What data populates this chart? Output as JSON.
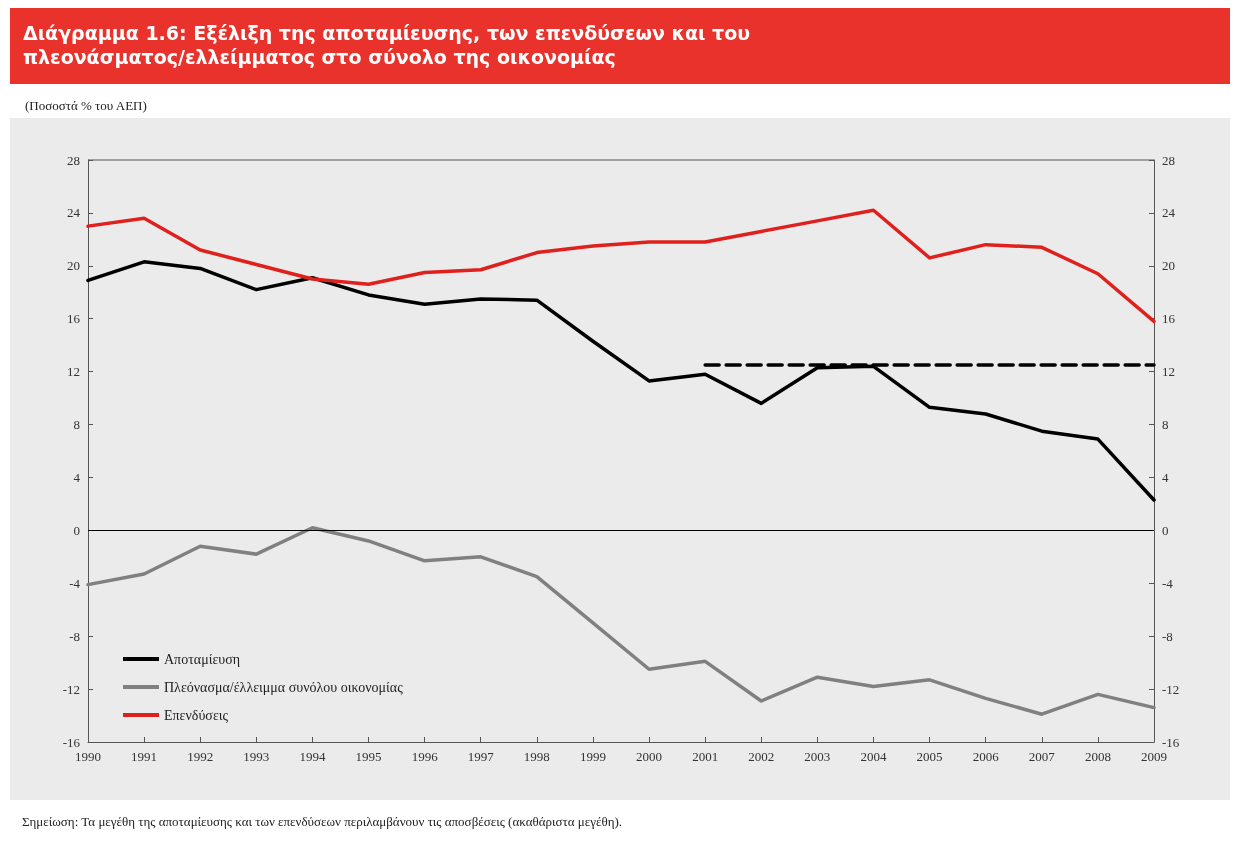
{
  "chart_data": {
    "type": "line",
    "title": "Διάγραμμα 1.6: Εξέλιξη της αποταμίευσης, των επενδύσεων και του πλεονάσματος/ελλείμματος στο σύνολο της οικονομίας",
    "subtitle": "(Ποσοστά % του ΑΕΠ)",
    "annotations": [
      "Σημείωση: Τα μεγέθη της αποταμίευσης και των επενδύσεων περιλαμβάνουν τις αποσβέσεις (ακαθάριστα μεγέθη)."
    ],
    "categories": [
      "1990",
      "1991",
      "1992",
      "1993",
      "1994",
      "1995",
      "1996",
      "1997",
      "1998",
      "1999",
      "2000",
      "2001",
      "2002",
      "2003",
      "2004",
      "2005",
      "2006",
      "2007",
      "2008",
      "2009"
    ],
    "series": [
      {
        "name": "Αποταμίευση",
        "color": "#000000",
        "values": [
          18.9,
          20.3,
          19.8,
          18.2,
          19.1,
          17.8,
          17.1,
          17.5,
          17.4,
          14.3,
          11.3,
          11.8,
          9.6,
          12.3,
          12.4,
          9.3,
          8.8,
          7.5,
          6.9,
          2.3
        ]
      },
      {
        "name": "Πλεόνασμα/έλλειμμα συνόλου οικονομίας",
        "color": "#808080",
        "values": [
          -4.1,
          -3.3,
          -1.2,
          -1.8,
          0.2,
          -0.8,
          -2.3,
          -2.0,
          -3.5,
          -7.0,
          -10.5,
          -9.9,
          -12.9,
          -11.1,
          -11.8,
          -11.3,
          -12.7,
          -13.9,
          -12.4,
          -13.4
        ]
      },
      {
        "name": "Επενδύσεις",
        "color": "#e0201c",
        "values": [
          23.0,
          23.6,
          21.2,
          20.1,
          19.0,
          18.6,
          19.5,
          19.7,
          21.0,
          21.5,
          21.8,
          21.8,
          22.6,
          23.4,
          24.2,
          20.6,
          21.6,
          21.4,
          19.4,
          15.8
        ]
      },
      {
        "color": "#000000",
        "line_style": "dashed",
        "values": [
          null,
          null,
          null,
          null,
          null,
          null,
          null,
          null,
          null,
          null,
          null,
          12.5,
          12.5,
          12.5,
          12.5,
          12.5,
          12.5,
          12.5,
          12.5,
          12.5
        ]
      }
    ],
    "ylim": [
      -16,
      28
    ],
    "yticks": [
      -16,
      -12,
      -8,
      -4,
      0,
      4,
      8,
      12,
      16,
      20,
      24,
      28
    ],
    "y2lim": [
      -16,
      28
    ],
    "y2ticks": [
      -16,
      -12,
      -8,
      -4,
      0,
      4,
      8,
      12,
      16,
      20,
      24,
      28
    ],
    "ref_lines": [
      {
        "axis": "y",
        "value": 0,
        "color": "#000000"
      }
    ],
    "grid": false,
    "legend": "bottom left",
    "marker": "none",
    "line_style": "solid"
  }
}
